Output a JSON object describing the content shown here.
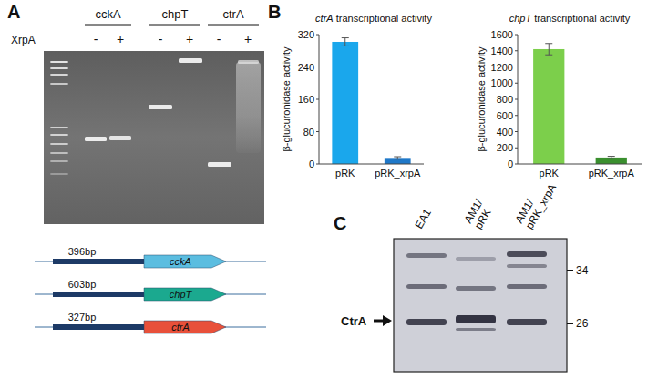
{
  "panel_labels": [
    "A",
    "B",
    "C"
  ],
  "gel": {
    "treatment_label": "XrpA",
    "genes": [
      "cckA",
      "chpT",
      "ctrA"
    ],
    "lane_signs": [
      "-",
      "+"
    ]
  },
  "constructs": [
    {
      "length": "396bp",
      "gene": "cckA",
      "color": "#5bbde0"
    },
    {
      "length": "603bp",
      "gene": "chpT",
      "color": "#1ba98f"
    },
    {
      "length": "327bp",
      "gene": "ctrA",
      "color": "#e8503a"
    }
  ],
  "chart_data": [
    {
      "type": "bar",
      "title": "ctrA transcriptional activity",
      "ylabel": "β-glucuronidase activity",
      "categories": [
        "pRK",
        "pRK_xrpA"
      ],
      "values": [
        302,
        15
      ],
      "errors": [
        10,
        3
      ],
      "colors": [
        "#1aa7ec",
        "#1f78c8"
      ],
      "ylim": [
        0,
        320
      ],
      "yticks": [
        0,
        80,
        160,
        240,
        320
      ]
    },
    {
      "type": "bar",
      "title": "chpT transcriptional activity",
      "ylabel": "β-glucuronidase activity",
      "categories": [
        "pRK",
        "pRK_xrpA"
      ],
      "values": [
        1420,
        80
      ],
      "errors": [
        70,
        15
      ],
      "colors": [
        "#7ccf4b",
        "#3a8f2e"
      ],
      "ylim": [
        0,
        1600
      ],
      "yticks": [
        0,
        200,
        400,
        600,
        800,
        1000,
        1200,
        1400,
        1600
      ]
    }
  ],
  "blot": {
    "lanes": [
      "EA1",
      "AM1/ pRK",
      "AM1/ pRK_xrpA"
    ],
    "target": "CtrA",
    "markers": [
      34,
      26
    ]
  }
}
